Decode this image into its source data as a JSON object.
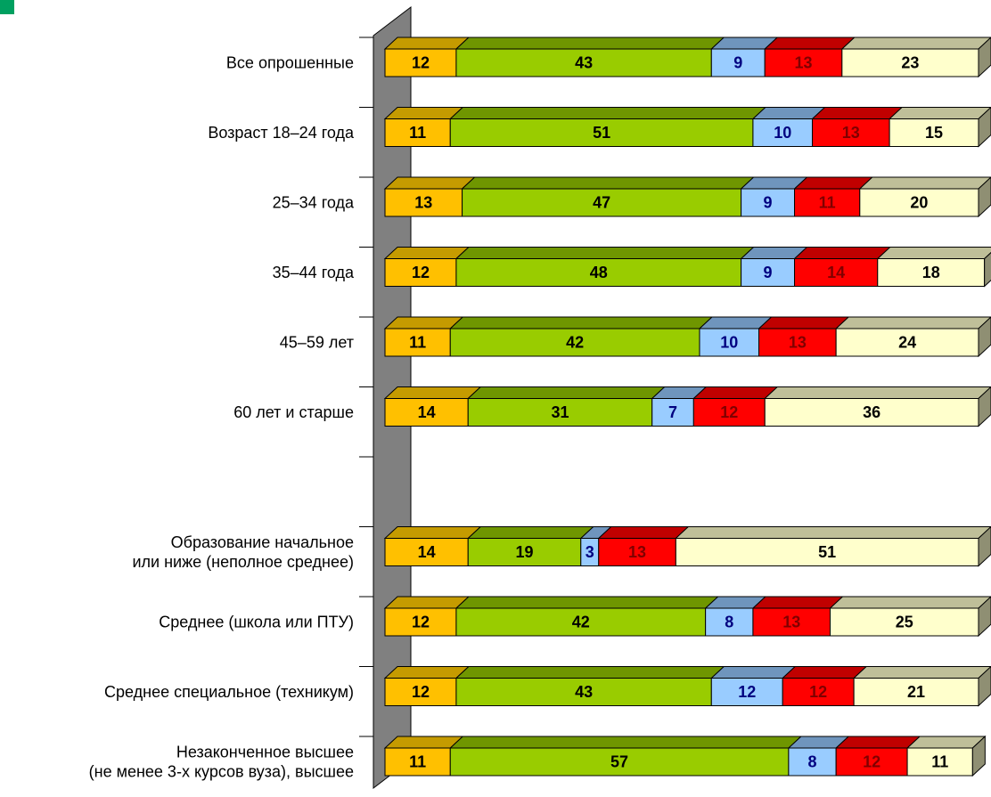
{
  "chart_data": {
    "type": "bar",
    "stacked": true,
    "orientation": "horizontal",
    "three_d": true,
    "categories": [
      [
        "Все опрошенные"
      ],
      [
        "Возраст 18–24 года"
      ],
      [
        "25–34 года"
      ],
      [
        "35–44 года"
      ],
      [
        "45–59 лет"
      ],
      [
        "60 лет и старше"
      ],
      [],
      [
        "Образование начальное",
        "или ниже (неполное среднее)"
      ],
      [
        "Среднее (школа или ПТУ)"
      ],
      [
        "Среднее специальное (техникум)"
      ],
      [
        "Незаконченное высшее",
        "(не менее 3-х курсов вуза), высшее"
      ]
    ],
    "series": [
      {
        "values": [
          12,
          11,
          13,
          12,
          11,
          14,
          null,
          14,
          12,
          12,
          11
        ],
        "color": "#ffc000",
        "top": "#c59b00",
        "side": "#a07e00",
        "label_color": "#000000"
      },
      {
        "values": [
          43,
          51,
          47,
          48,
          42,
          31,
          null,
          19,
          42,
          43,
          57
        ],
        "color": "#99cc00",
        "top": "#6f9600",
        "side": "#5a7a00",
        "label_color": "#000000"
      },
      {
        "values": [
          9,
          10,
          9,
          9,
          10,
          7,
          null,
          3,
          8,
          12,
          8
        ],
        "color": "#99ccff",
        "top": "#6f95bd",
        "side": "#5b7c9e",
        "label_color": "#000080"
      },
      {
        "values": [
          13,
          13,
          11,
          14,
          13,
          12,
          null,
          13,
          13,
          12,
          12
        ],
        "color": "#ff0000",
        "top": "#c00000",
        "side": "#9a0000",
        "label_color": "#800000"
      },
      {
        "values": [
          23,
          15,
          20,
          18,
          24,
          36,
          null,
          51,
          25,
          21,
          11
        ],
        "color": "#ffffcc",
        "top": "#bfbf99",
        "side": "#8f8f73",
        "label_color": "#000000"
      }
    ],
    "xlim": [
      0,
      100
    ],
    "grid": false,
    "legend": "none"
  },
  "decor": {
    "corner_mark_color": "#00a060",
    "wall_color": "#808080"
  }
}
